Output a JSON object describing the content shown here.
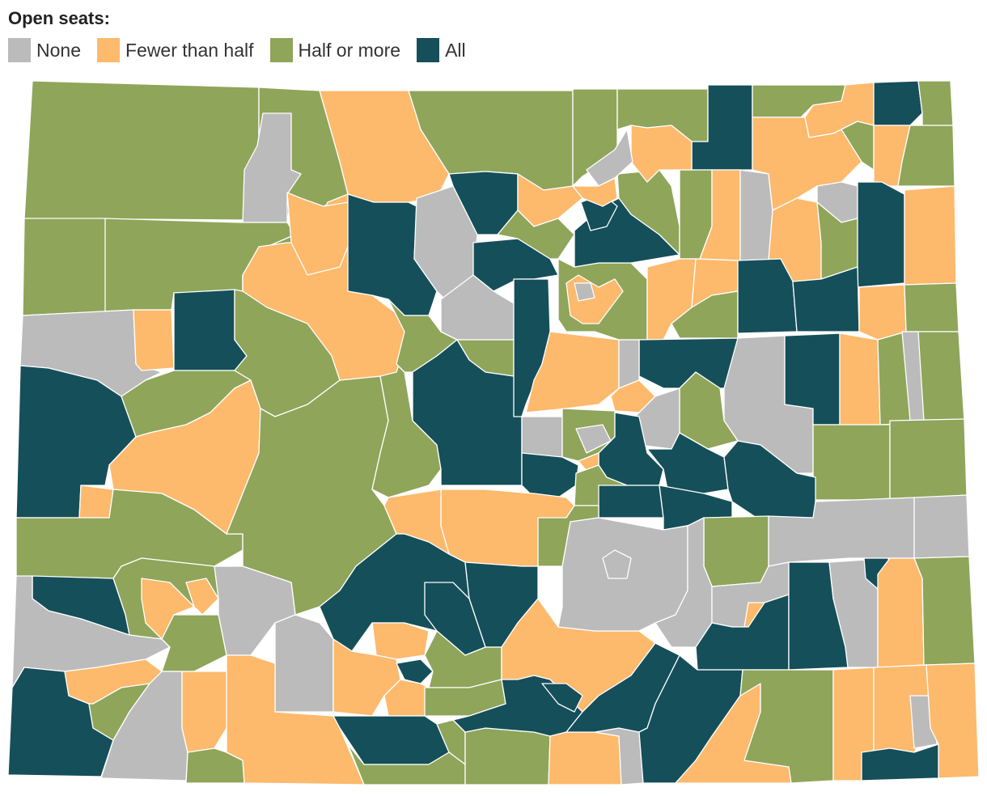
{
  "title": "Open seats:",
  "colors": {
    "none": "#bbbbbb",
    "fewer": "#fdb96c",
    "half": "#8fa55a",
    "all": "#154f5a",
    "border": "#ffffff"
  },
  "legend": [
    {
      "key": "none",
      "label": "None"
    },
    {
      "key": "fewer",
      "label": "Fewer than half"
    },
    {
      "key": "half",
      "label": "Half or more"
    },
    {
      "key": "all",
      "label": "All"
    }
  ]
}
